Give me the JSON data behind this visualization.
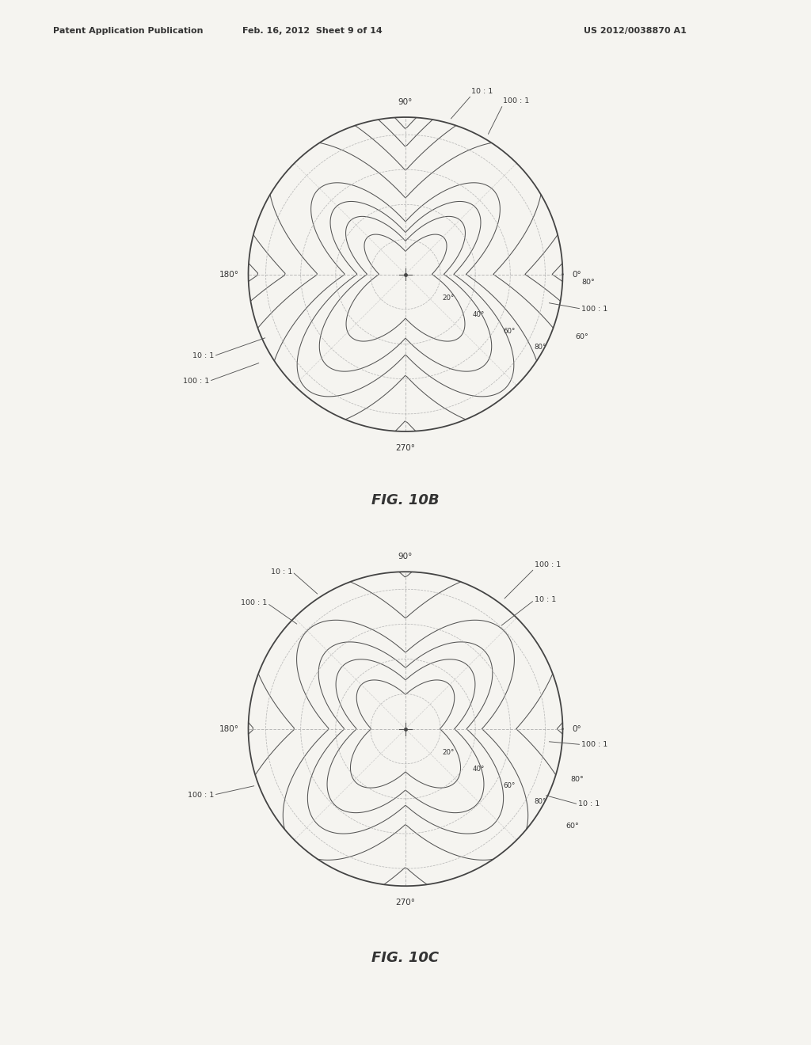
{
  "header_left": "Patent Application Publication",
  "header_mid": "Feb. 16, 2012  Sheet 9 of 14",
  "header_right": "US 2012/0038870 A1",
  "fig_label_top": "FIG. 10B",
  "fig_label_bot": "FIG. 10C",
  "page_color": "#f5f4f0",
  "contour_color": "#444444",
  "dashed_color": "#999999",
  "text_color": "#333333"
}
